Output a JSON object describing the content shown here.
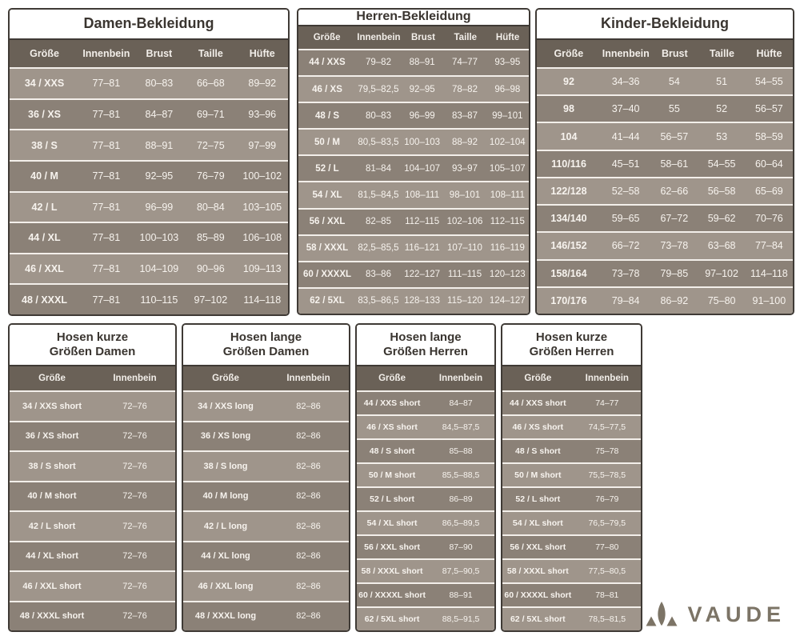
{
  "colors": {
    "background": "#ffffff",
    "table_border": "#3f3a35",
    "title_text": "#3a3530",
    "header_band": "#6a6157",
    "header_text": "#f2eee9",
    "row_light": "#9f958b",
    "row_dark": "#8b8177",
    "row_text": "#f7f3ee",
    "logo": "#7c7466"
  },
  "logo": {
    "brand": "VAUDE"
  },
  "chart_data": [
    {
      "type": "table",
      "title": "Damen-Bekleidung",
      "title_lines": [
        "Damen-Bekleidung"
      ],
      "columns": [
        "Größe",
        "Innenbein",
        "Brust",
        "Taille",
        "Hüfte"
      ],
      "first_row_shade": "light",
      "rows": [
        [
          "34 / XXS",
          "77–81",
          "80–83",
          "66–68",
          "89–92"
        ],
        [
          "36 / XS",
          "77–81",
          "84–87",
          "69–71",
          "93–96"
        ],
        [
          "38 / S",
          "77–81",
          "88–91",
          "72–75",
          "97–99"
        ],
        [
          "40 / M",
          "77–81",
          "92–95",
          "76–79",
          "100–102"
        ],
        [
          "42 / L",
          "77–81",
          "96–99",
          "80–84",
          "103–105"
        ],
        [
          "44 / XL",
          "77–81",
          "100–103",
          "85–89",
          "106–108"
        ],
        [
          "46 / XXL",
          "77–81",
          "104–109",
          "90–96",
          "109–113"
        ],
        [
          "48 / XXXL",
          "77–81",
          "110–115",
          "97–102",
          "114–118"
        ]
      ]
    },
    {
      "type": "table",
      "title": "Herren-Bekleidung",
      "title_lines": [
        "Herren-Bekleidung"
      ],
      "columns": [
        "Größe",
        "Innenbein",
        "Brust",
        "Taille",
        "Hüfte"
      ],
      "first_row_shade": "dark",
      "rows": [
        [
          "44 / XXS",
          "79–82",
          "88–91",
          "74–77",
          "93–95"
        ],
        [
          "46 / XS",
          "79,5–82,5",
          "92–95",
          "78–82",
          "96–98"
        ],
        [
          "48 / S",
          "80–83",
          "96–99",
          "83–87",
          "99–101"
        ],
        [
          "50 / M",
          "80,5–83,5",
          "100–103",
          "88–92",
          "102–104"
        ],
        [
          "52 / L",
          "81–84",
          "104–107",
          "93–97",
          "105–107"
        ],
        [
          "54 / XL",
          "81,5–84,5",
          "108–111",
          "98–101",
          "108–111"
        ],
        [
          "56 / XXL",
          "82–85",
          "112–115",
          "102–106",
          "112–115"
        ],
        [
          "58 / XXXL",
          "82,5–85,5",
          "116–121",
          "107–110",
          "116–119"
        ],
        [
          "60 / XXXXL",
          "83–86",
          "122–127",
          "111–115",
          "120–123"
        ],
        [
          "62 / 5XL",
          "83,5–86,5",
          "128–133",
          "115–120",
          "124–127"
        ]
      ]
    },
    {
      "type": "table",
      "title": "Kinder-Bekleidung",
      "title_lines": [
        "Kinder-Bekleidung"
      ],
      "columns": [
        "Größe",
        "Innenbein",
        "Brust",
        "Taille",
        "Hüfte"
      ],
      "first_row_shade": "light",
      "rows": [
        [
          "92",
          "34–36",
          "54",
          "51",
          "54–55"
        ],
        [
          "98",
          "37–40",
          "55",
          "52",
          "56–57"
        ],
        [
          "104",
          "41–44",
          "56–57",
          "53",
          "58–59"
        ],
        [
          "110/116",
          "45–51",
          "58–61",
          "54–55",
          "60–64"
        ],
        [
          "122/128",
          "52–58",
          "62–66",
          "56–58",
          "65–69"
        ],
        [
          "134/140",
          "59–65",
          "67–72",
          "59–62",
          "70–76"
        ],
        [
          "146/152",
          "66–72",
          "73–78",
          "63–68",
          "77–84"
        ],
        [
          "158/164",
          "73–78",
          "79–85",
          "97–102",
          "114–118"
        ],
        [
          "170/176",
          "79–84",
          "86–92",
          "75–80",
          "91–100"
        ]
      ]
    },
    {
      "type": "table",
      "title": "Hosen kurze Größen Damen",
      "title_lines": [
        "Hosen kurze",
        "Größen Damen"
      ],
      "columns": [
        "Größe",
        "Innenbein"
      ],
      "first_row_shade": "light",
      "rows": [
        [
          "34 / XXS short",
          "72–76"
        ],
        [
          "36 / XS short",
          "72–76"
        ],
        [
          "38 / S short",
          "72–76"
        ],
        [
          "40 / M short",
          "72–76"
        ],
        [
          "42 / L short",
          "72–76"
        ],
        [
          "44 / XL short",
          "72–76"
        ],
        [
          "46 / XXL short",
          "72–76"
        ],
        [
          "48 / XXXL short",
          "72–76"
        ]
      ]
    },
    {
      "type": "table",
      "title": "Hosen lange Größen Damen",
      "title_lines": [
        "Hosen lange",
        "Größen Damen"
      ],
      "columns": [
        "Größe",
        "Innenbein"
      ],
      "first_row_shade": "light",
      "rows": [
        [
          "34 / XXS long",
          "82–86"
        ],
        [
          "36 / XS long",
          "82–86"
        ],
        [
          "38 / S long",
          "82–86"
        ],
        [
          "40 / M long",
          "82–86"
        ],
        [
          "42 / L long",
          "82–86"
        ],
        [
          "44 / XL long",
          "82–86"
        ],
        [
          "46 / XXL long",
          "82–86"
        ],
        [
          "48 / XXXL long",
          "82–86"
        ]
      ]
    },
    {
      "type": "table",
      "title": "Hosen lange Größen Herren",
      "title_lines": [
        "Hosen lange",
        "Größen Herren"
      ],
      "columns": [
        "Größe",
        "Innenbein"
      ],
      "first_row_shade": "dark",
      "rows": [
        [
          "44 / XXS short",
          "84–87"
        ],
        [
          "46 / XS short",
          "84,5–87,5"
        ],
        [
          "48 / S short",
          "85–88"
        ],
        [
          "50 / M short",
          "85,5–88,5"
        ],
        [
          "52 / L short",
          "86–89"
        ],
        [
          "54 / XL short",
          "86,5–89,5"
        ],
        [
          "56 / XXL short",
          "87–90"
        ],
        [
          "58 / XXXL short",
          "87,5–90,5"
        ],
        [
          "60 / XXXXL short",
          "88–91"
        ],
        [
          "62 / 5XL short",
          "88,5–91,5"
        ]
      ]
    },
    {
      "type": "table",
      "title": "Hosen kurze Größen Herren",
      "title_lines": [
        "Hosen kurze",
        "Größen Herren"
      ],
      "columns": [
        "Größe",
        "Innenbein"
      ],
      "first_row_shade": "dark",
      "rows": [
        [
          "44 / XXS short",
          "74–77"
        ],
        [
          "46 / XS short",
          "74,5–77,5"
        ],
        [
          "48 / S short",
          "75–78"
        ],
        [
          "50 / M short",
          "75,5–78,5"
        ],
        [
          "52 / L short",
          "76–79"
        ],
        [
          "54 / XL short",
          "76,5–79,5"
        ],
        [
          "56 / XXL short",
          "77–80"
        ],
        [
          "58 / XXXL short",
          "77,5–80,5"
        ],
        [
          "60 / XXXXL short",
          "78–81"
        ],
        [
          "62 / 5XL short",
          "78,5–81,5"
        ]
      ]
    }
  ]
}
